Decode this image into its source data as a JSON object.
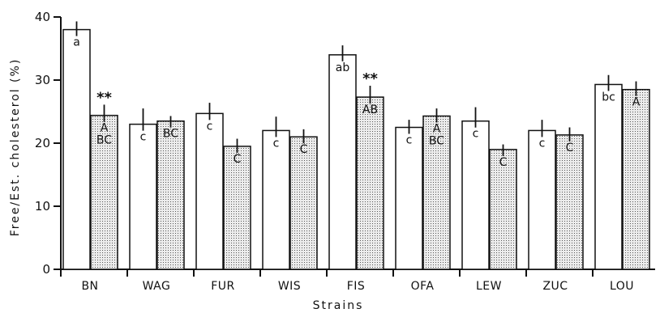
{
  "chart_data": {
    "type": "bar",
    "categories": [
      "BN",
      "WAG",
      "FUR",
      "WIS",
      "FIS",
      "OFA",
      "LEW",
      "ZUC",
      "LOU"
    ],
    "series": [
      {
        "values": [
          38,
          23,
          24.7,
          22,
          34,
          22.5,
          23.5,
          22,
          29.3
        ],
        "errors": [
          1.3,
          2.5,
          1.7,
          2.2,
          1.5,
          1.2,
          2.2,
          1.7,
          1.5
        ],
        "labels": [
          "a",
          "c",
          "c",
          "c",
          "ab",
          "c",
          "c",
          "c",
          "bc"
        ],
        "significance": [
          "",
          "",
          "",
          "",
          "",
          "",
          "",
          "",
          ""
        ]
      },
      {
        "values": [
          24.4,
          23.5,
          19.5,
          21,
          27.3,
          24.3,
          19,
          21.3,
          28.5
        ],
        "errors": [
          1.7,
          0.8,
          1.2,
          1.2,
          1.8,
          1.2,
          0.8,
          1.2,
          1.3
        ],
        "labels": [
          "A\nBC",
          "BC",
          "C",
          "C",
          "AB",
          "A\nBC",
          "C",
          "C",
          "A"
        ],
        "significance": [
          "**",
          "",
          "",
          "",
          "**",
          "",
          "",
          "",
          ""
        ]
      }
    ],
    "xlabel": "Strains",
    "ylabel": "Free/Est. cholesterol (%)",
    "ylim": [
      0,
      40
    ],
    "yticks": [
      0,
      10,
      20,
      30,
      40
    ],
    "legend": "none",
    "grid": false,
    "colors": {
      "open_bar": "#ffffff",
      "stippled_bar": "#c8c8c8",
      "stroke": "#111111"
    }
  }
}
